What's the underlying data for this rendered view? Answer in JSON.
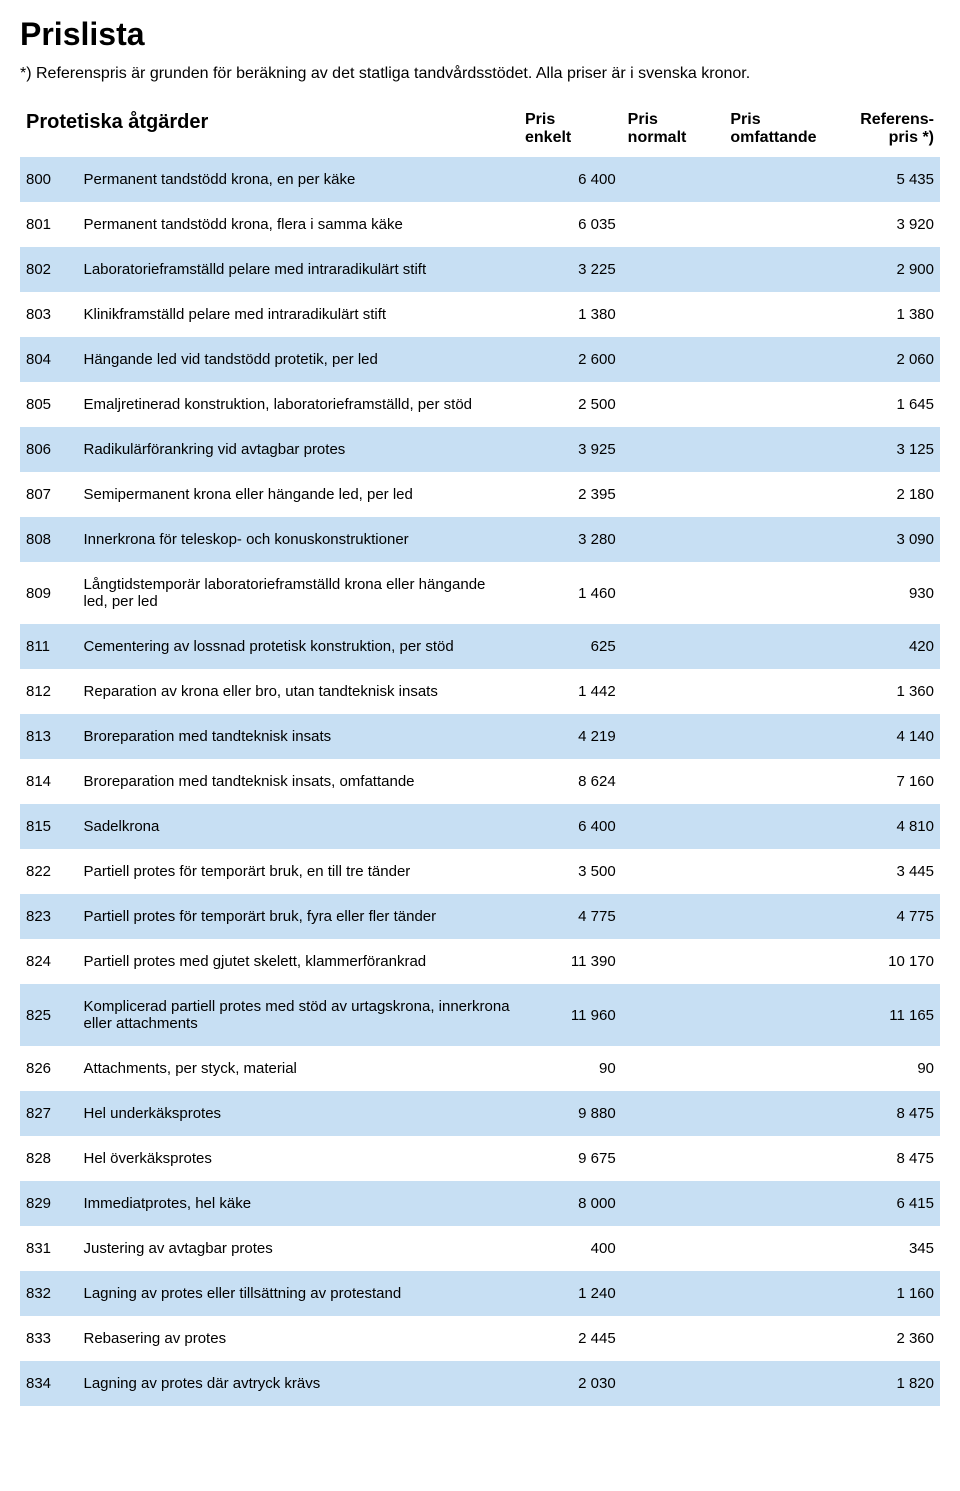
{
  "page": {
    "title": "Prislista",
    "note": "*) Referenspris är grunden för beräkning av det statliga tandvårdsstödet. Alla priser är i svenska kronor.",
    "section_title": "Protetiska åtgärder"
  },
  "columns": {
    "pris_enkelt_l1": "Pris",
    "pris_enkelt_l2": "enkelt",
    "pris_normalt_l1": "Pris",
    "pris_normalt_l2": "normalt",
    "pris_omf_l1": "Pris",
    "pris_omf_l2": "omfattande",
    "ref_l1": "Referens-",
    "ref_l2": "pris *)"
  },
  "rows": [
    {
      "code": "800",
      "desc": "Permanent tandstödd krona, en per käke",
      "enkelt": "6 400",
      "normalt": "",
      "omf": "",
      "ref": "5 435"
    },
    {
      "code": "801",
      "desc": "Permanent tandstödd krona, flera i samma käke",
      "enkelt": "6 035",
      "normalt": "",
      "omf": "",
      "ref": "3 920"
    },
    {
      "code": "802",
      "desc": "Laboratorieframställd pelare med intraradikulärt stift",
      "enkelt": "3 225",
      "normalt": "",
      "omf": "",
      "ref": "2 900"
    },
    {
      "code": "803",
      "desc": "Klinikframställd pelare med intraradikulärt stift",
      "enkelt": "1 380",
      "normalt": "",
      "omf": "",
      "ref": "1 380"
    },
    {
      "code": "804",
      "desc": "Hängande led vid tandstödd protetik, per led",
      "enkelt": "2 600",
      "normalt": "",
      "omf": "",
      "ref": "2 060"
    },
    {
      "code": "805",
      "desc": "Emaljretinerad konstruktion, laboratorieframställd, per stöd",
      "enkelt": "2 500",
      "normalt": "",
      "omf": "",
      "ref": "1 645"
    },
    {
      "code": "806",
      "desc": "Radikulärförankring vid avtagbar protes",
      "enkelt": "3 925",
      "normalt": "",
      "omf": "",
      "ref": "3 125"
    },
    {
      "code": "807",
      "desc": "Semipermanent krona eller hängande led, per led",
      "enkelt": "2 395",
      "normalt": "",
      "omf": "",
      "ref": "2 180"
    },
    {
      "code": "808",
      "desc": "Innerkrona för teleskop- och konuskonstruktioner",
      "enkelt": "3 280",
      "normalt": "",
      "omf": "",
      "ref": "3 090"
    },
    {
      "code": "809",
      "desc": "Långtidstemporär laboratorieframställd krona eller hängande led, per led",
      "enkelt": "1 460",
      "normalt": "",
      "omf": "",
      "ref": "930"
    },
    {
      "code": "811",
      "desc": "Cementering av lossnad protetisk konstruktion, per stöd",
      "enkelt": "625",
      "normalt": "",
      "omf": "",
      "ref": "420"
    },
    {
      "code": "812",
      "desc": "Reparation av krona eller bro, utan tandteknisk insats",
      "enkelt": "1 442",
      "normalt": "",
      "omf": "",
      "ref": "1 360"
    },
    {
      "code": "813",
      "desc": "Broreparation med tandteknisk insats",
      "enkelt": "4 219",
      "normalt": "",
      "omf": "",
      "ref": "4 140"
    },
    {
      "code": "814",
      "desc": "Broreparation med tandteknisk insats, omfattande",
      "enkelt": "8 624",
      "normalt": "",
      "omf": "",
      "ref": "7 160"
    },
    {
      "code": "815",
      "desc": "Sadelkrona",
      "enkelt": "6 400",
      "normalt": "",
      "omf": "",
      "ref": "4 810"
    },
    {
      "code": "822",
      "desc": "Partiell protes för temporärt bruk, en till tre tänder",
      "enkelt": "3 500",
      "normalt": "",
      "omf": "",
      "ref": "3 445"
    },
    {
      "code": "823",
      "desc": "Partiell protes för temporärt bruk, fyra eller fler tänder",
      "enkelt": "4 775",
      "normalt": "",
      "omf": "",
      "ref": "4 775"
    },
    {
      "code": "824",
      "desc": "Partiell protes med gjutet skelett, klammerförankrad",
      "enkelt": "11 390",
      "normalt": "",
      "omf": "",
      "ref": "10 170"
    },
    {
      "code": "825",
      "desc": "Komplicerad partiell protes med stöd av urtagskrona, innerkrona eller attachments",
      "enkelt": "11 960",
      "normalt": "",
      "omf": "",
      "ref": "11 165"
    },
    {
      "code": "826",
      "desc": "Attachments, per styck, material",
      "enkelt": "90",
      "normalt": "",
      "omf": "",
      "ref": "90"
    },
    {
      "code": "827",
      "desc": "Hel underkäksprotes",
      "enkelt": "9 880",
      "normalt": "",
      "omf": "",
      "ref": "8 475"
    },
    {
      "code": "828",
      "desc": "Hel överkäksprotes",
      "enkelt": "9 675",
      "normalt": "",
      "omf": "",
      "ref": "8 475"
    },
    {
      "code": "829",
      "desc": "Immediatprotes, hel käke",
      "enkelt": "8 000",
      "normalt": "",
      "omf": "",
      "ref": "6 415"
    },
    {
      "code": "831",
      "desc": "Justering av avtagbar protes",
      "enkelt": "400",
      "normalt": "",
      "omf": "",
      "ref": "345"
    },
    {
      "code": "832",
      "desc": "Lagning av protes eller tillsättning av protestand",
      "enkelt": "1 240",
      "normalt": "",
      "omf": "",
      "ref": "1 160"
    },
    {
      "code": "833",
      "desc": "Rebasering av protes",
      "enkelt": "2 445",
      "normalt": "",
      "omf": "",
      "ref": "2 360"
    },
    {
      "code": "834",
      "desc": "Lagning av protes där avtryck krävs",
      "enkelt": "2 030",
      "normalt": "",
      "omf": "",
      "ref": "1 820"
    }
  ],
  "style": {
    "row_even_bg": "#c7dff3",
    "row_odd_bg": "#ffffff"
  }
}
